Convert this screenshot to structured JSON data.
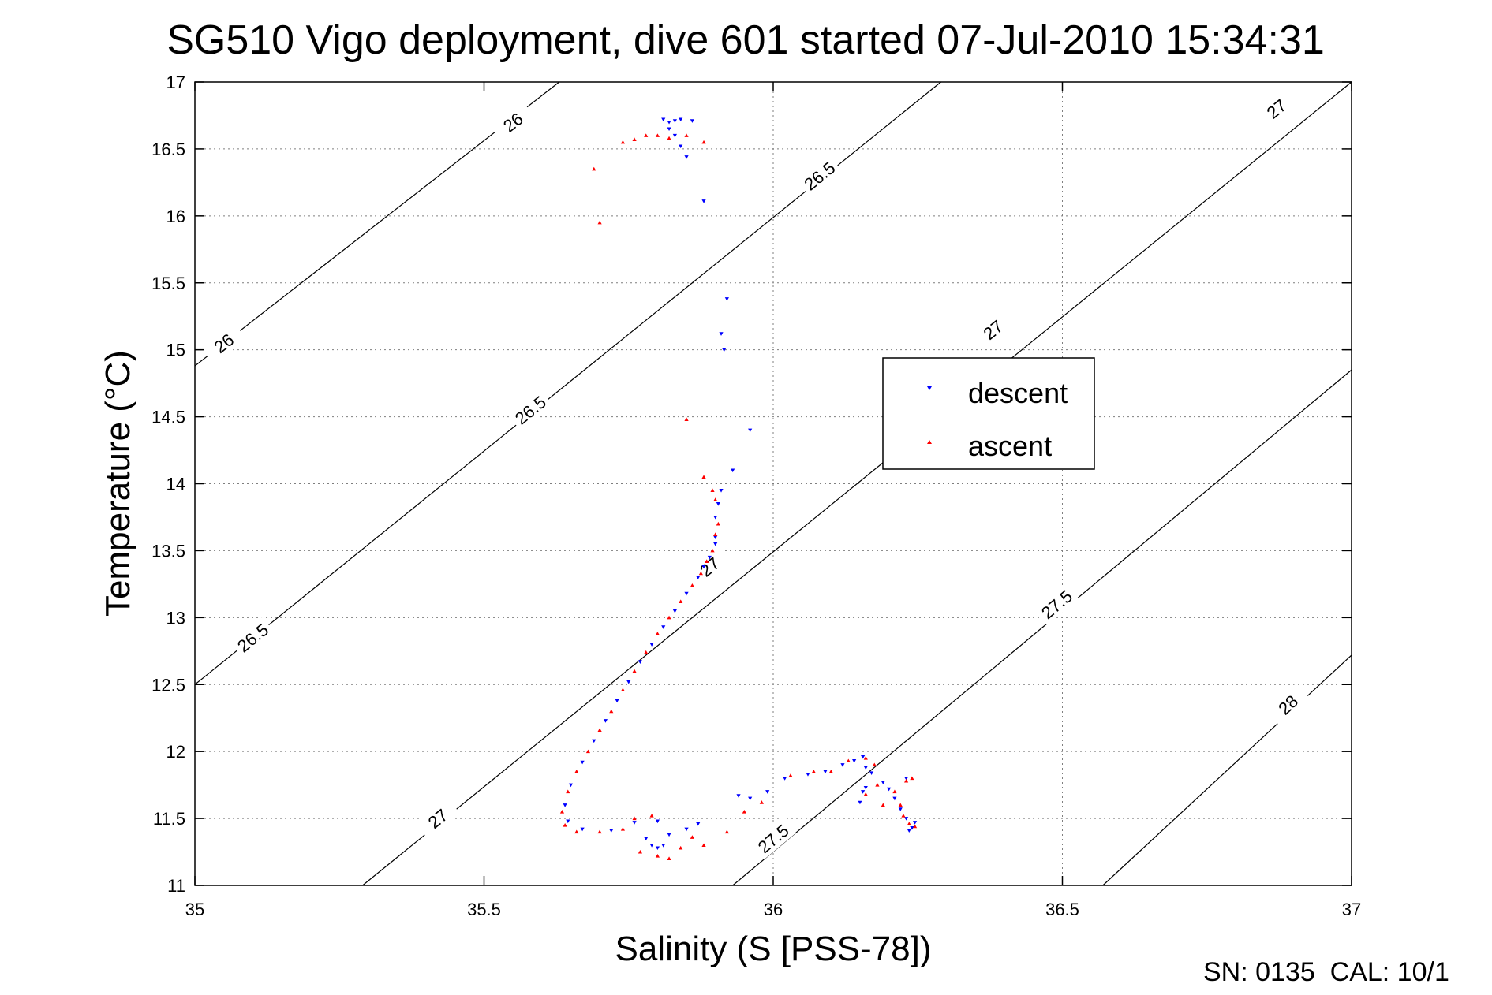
{
  "chart_data": {
    "type": "scatter",
    "title": "SG510 Vigo deployment, dive 601 started 07-Jul-2010 15:34:31",
    "xlabel": "Salinity (S [PSS-78])",
    "ylabel": "Temperature (°C)",
    "xlim": [
      35,
      37
    ],
    "ylim": [
      11,
      17
    ],
    "xticks": [
      35,
      35.5,
      36,
      36.5,
      37
    ],
    "yticks": [
      11,
      11.5,
      12,
      12.5,
      13,
      13.5,
      14,
      14.5,
      15,
      15.5,
      16,
      16.5,
      17
    ],
    "xtick_labels": [
      "35",
      "35.5",
      "36",
      "36.5",
      "37"
    ],
    "ytick_labels": [
      "11",
      "11.5",
      "12",
      "12.5",
      "13",
      "13.5",
      "14",
      "14.5",
      "15",
      "15.5",
      "16",
      "16.5",
      "17"
    ],
    "grid": true,
    "legend": {
      "position": "center-right",
      "entries": [
        "descent",
        "ascent"
      ]
    },
    "footer": "SN: 0135  CAL: 10/1",
    "colors": {
      "descent": "#0000ff",
      "ascent": "#ff0000",
      "contour": "#000000",
      "grid": "#7f7f7f"
    },
    "density_contours": [
      {
        "label": "26",
        "points": [
          [
            35.0,
            14.88
          ],
          [
            35.63,
            17.0
          ]
        ],
        "label_positions": [
          [
            35.05,
            15.05
          ],
          [
            35.55,
            16.7
          ]
        ]
      },
      {
        "label": "26.5",
        "points": [
          [
            35.0,
            12.5
          ],
          [
            36.29,
            17.0
          ]
        ],
        "label_positions": [
          [
            35.1,
            12.85
          ],
          [
            35.58,
            14.55
          ],
          [
            36.08,
            16.3
          ]
        ]
      },
      {
        "label": "27",
        "points": [
          [
            35.29,
            11.0
          ],
          [
            37.0,
            17.0
          ]
        ],
        "label_positions": [
          [
            35.42,
            11.5
          ],
          [
            35.89,
            13.38
          ],
          [
            36.38,
            15.15
          ],
          [
            36.87,
            16.8
          ]
        ]
      },
      {
        "label": "27.5",
        "points": [
          [
            35.93,
            11.0
          ],
          [
            37.0,
            14.85
          ]
        ],
        "label_positions": [
          [
            36.0,
            11.35
          ],
          [
            36.49,
            13.1
          ]
        ]
      },
      {
        "label": "28",
        "points": [
          [
            36.57,
            11.0
          ],
          [
            37.0,
            12.72
          ]
        ],
        "label_positions": [
          [
            36.89,
            12.35
          ]
        ]
      }
    ],
    "series": [
      {
        "name": "descent",
        "marker": "triangle-down",
        "points": [
          [
            35.81,
            16.72
          ],
          [
            35.82,
            16.7
          ],
          [
            35.83,
            16.71
          ],
          [
            35.84,
            16.72
          ],
          [
            35.86,
            16.71
          ],
          [
            35.82,
            16.65
          ],
          [
            35.83,
            16.6
          ],
          [
            35.84,
            16.52
          ],
          [
            35.85,
            16.44
          ],
          [
            35.88,
            16.11
          ],
          [
            35.92,
            15.38
          ],
          [
            35.91,
            15.12
          ],
          [
            35.915,
            15.0
          ],
          [
            35.96,
            14.4
          ],
          [
            35.93,
            14.1
          ],
          [
            35.91,
            13.95
          ],
          [
            35.905,
            13.85
          ],
          [
            35.9,
            13.75
          ],
          [
            35.9,
            13.6
          ],
          [
            35.9,
            13.55
          ],
          [
            35.89,
            13.45
          ],
          [
            35.88,
            13.38
          ],
          [
            35.87,
            13.3
          ],
          [
            35.85,
            13.18
          ],
          [
            35.83,
            13.05
          ],
          [
            35.81,
            12.93
          ],
          [
            35.79,
            12.8
          ],
          [
            35.77,
            12.67
          ],
          [
            35.75,
            12.52
          ],
          [
            35.73,
            12.38
          ],
          [
            35.71,
            12.23
          ],
          [
            35.69,
            12.08
          ],
          [
            35.67,
            11.92
          ],
          [
            35.65,
            11.75
          ],
          [
            35.64,
            11.6
          ],
          [
            35.645,
            11.48
          ],
          [
            35.67,
            11.42
          ],
          [
            35.72,
            11.41
          ],
          [
            35.76,
            11.47
          ],
          [
            35.8,
            11.48
          ],
          [
            35.78,
            11.35
          ],
          [
            35.79,
            11.3
          ],
          [
            35.8,
            11.28
          ],
          [
            35.81,
            11.3
          ],
          [
            35.82,
            11.38
          ],
          [
            35.85,
            11.42
          ],
          [
            35.87,
            11.46
          ],
          [
            35.94,
            11.67
          ],
          [
            35.96,
            11.65
          ],
          [
            35.99,
            11.7
          ],
          [
            36.02,
            11.8
          ],
          [
            36.06,
            11.83
          ],
          [
            36.09,
            11.85
          ],
          [
            36.12,
            11.9
          ],
          [
            36.14,
            11.93
          ],
          [
            36.155,
            11.96
          ],
          [
            36.16,
            11.88
          ],
          [
            36.155,
            11.7
          ],
          [
            36.15,
            11.62
          ],
          [
            36.16,
            11.73
          ],
          [
            36.17,
            11.84
          ],
          [
            36.19,
            11.77
          ],
          [
            36.2,
            11.72
          ],
          [
            36.21,
            11.65
          ],
          [
            36.22,
            11.57
          ],
          [
            36.23,
            11.5
          ],
          [
            36.24,
            11.43
          ],
          [
            36.23,
            11.8
          ],
          [
            36.245,
            11.47
          ],
          [
            36.235,
            11.41
          ]
        ]
      },
      {
        "name": "ascent",
        "marker": "triangle-up",
        "points": [
          [
            35.69,
            16.35
          ],
          [
            35.7,
            15.95
          ],
          [
            35.74,
            16.55
          ],
          [
            35.76,
            16.57
          ],
          [
            35.78,
            16.6
          ],
          [
            35.8,
            16.6
          ],
          [
            35.82,
            16.58
          ],
          [
            35.85,
            16.6
          ],
          [
            35.88,
            16.55
          ],
          [
            35.85,
            14.48
          ],
          [
            35.88,
            14.05
          ],
          [
            35.895,
            13.95
          ],
          [
            35.9,
            13.88
          ],
          [
            35.905,
            13.7
          ],
          [
            35.9,
            13.62
          ],
          [
            35.895,
            13.5
          ],
          [
            35.885,
            13.42
          ],
          [
            35.875,
            13.33
          ],
          [
            35.86,
            13.24
          ],
          [
            35.84,
            13.12
          ],
          [
            35.82,
            13.0
          ],
          [
            35.8,
            12.88
          ],
          [
            35.78,
            12.74
          ],
          [
            35.76,
            12.6
          ],
          [
            35.74,
            12.46
          ],
          [
            35.72,
            12.3
          ],
          [
            35.7,
            12.16
          ],
          [
            35.68,
            12.0
          ],
          [
            35.66,
            11.85
          ],
          [
            35.645,
            11.7
          ],
          [
            35.635,
            11.55
          ],
          [
            35.64,
            11.45
          ],
          [
            35.66,
            11.4
          ],
          [
            35.7,
            11.4
          ],
          [
            35.74,
            11.42
          ],
          [
            35.76,
            11.5
          ],
          [
            35.79,
            11.52
          ],
          [
            35.77,
            11.25
          ],
          [
            35.8,
            11.22
          ],
          [
            35.82,
            11.2
          ],
          [
            35.84,
            11.28
          ],
          [
            35.86,
            11.36
          ],
          [
            35.88,
            11.3
          ],
          [
            35.92,
            11.4
          ],
          [
            35.95,
            11.55
          ],
          [
            35.98,
            11.62
          ],
          [
            36.03,
            11.82
          ],
          [
            36.07,
            11.85
          ],
          [
            36.1,
            11.85
          ],
          [
            36.13,
            11.93
          ],
          [
            36.16,
            11.95
          ],
          [
            36.175,
            11.9
          ],
          [
            36.18,
            11.75
          ],
          [
            36.16,
            11.68
          ],
          [
            36.19,
            11.6
          ],
          [
            36.21,
            11.7
          ],
          [
            36.22,
            11.6
          ],
          [
            36.225,
            11.52
          ],
          [
            36.235,
            11.46
          ],
          [
            36.24,
            11.8
          ],
          [
            36.245,
            11.44
          ],
          [
            36.23,
            11.78
          ]
        ]
      }
    ]
  }
}
